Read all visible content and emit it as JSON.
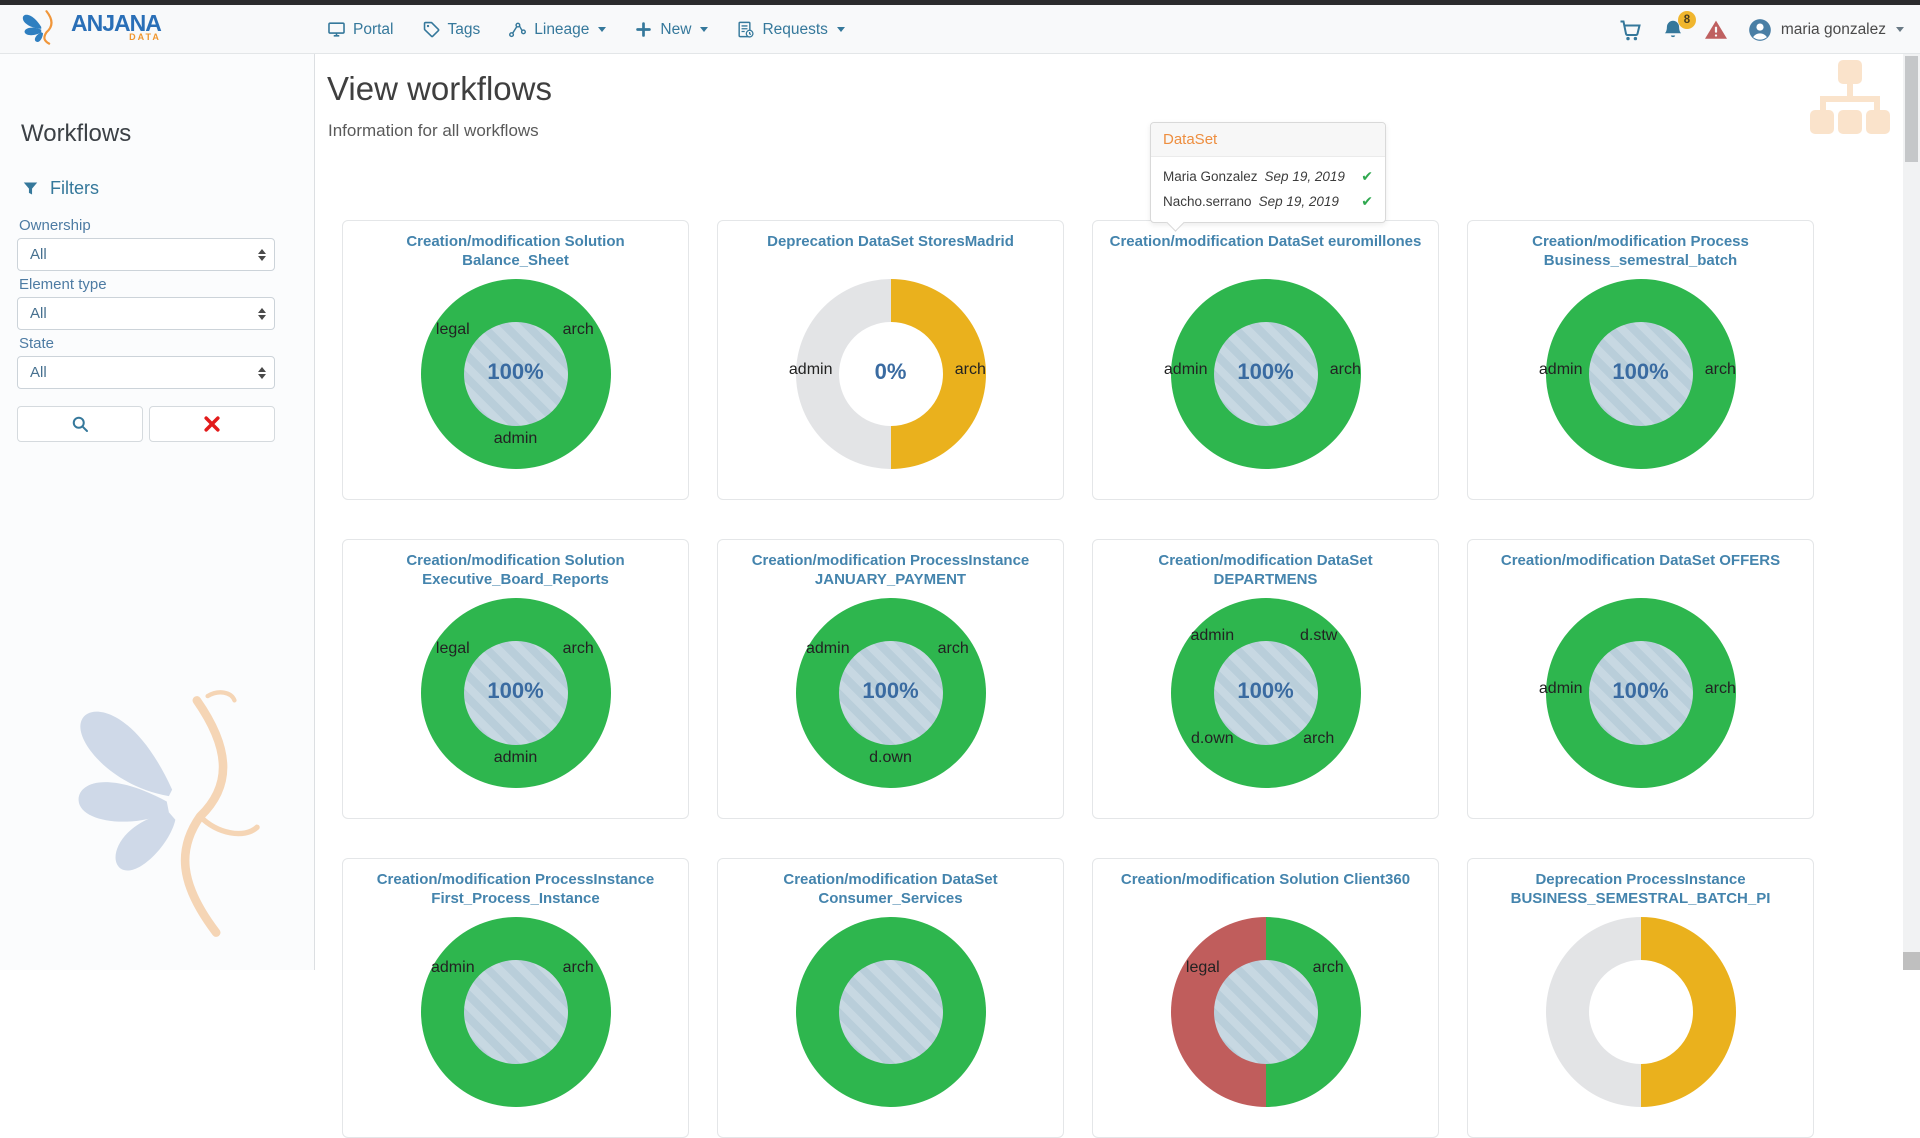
{
  "navbar": {
    "brand": {
      "name": "ANJANA",
      "sub": "DATA"
    },
    "items": [
      {
        "label": "Portal",
        "icon": "monitor-icon",
        "caret": false
      },
      {
        "label": "Tags",
        "icon": "tag-icon",
        "caret": false
      },
      {
        "label": "Lineage",
        "icon": "lineage-icon",
        "caret": true
      },
      {
        "label": "New",
        "icon": "plus-icon",
        "caret": true
      },
      {
        "label": "Requests",
        "icon": "requests-icon",
        "caret": true
      }
    ],
    "notifications_badge": "8",
    "user": "maria gonzalez"
  },
  "sidebar": {
    "title": "Workflows",
    "filters_label": "Filters",
    "fields": [
      {
        "label": "Ownership",
        "value": "All"
      },
      {
        "label": "Element type",
        "value": "All"
      },
      {
        "label": "State",
        "value": "All"
      }
    ]
  },
  "main": {
    "title": "View workflows",
    "subtitle": "Information for all workflows"
  },
  "popover": {
    "title": "DataSet",
    "rows": [
      {
        "name": "Maria Gonzalez",
        "date": "Sep 19, 2019",
        "approved": true
      },
      {
        "name": "Nacho.serrano",
        "date": "Sep 19, 2019",
        "approved": true
      }
    ]
  },
  "colors": {
    "accent_blue": "#35789b",
    "card_title_blue": "#4484ad",
    "donut_green": "#2eb64e",
    "donut_yellow": "#eab11d",
    "donut_gray": "#e3e4e6",
    "donut_red": "#c05d5c",
    "percent_blue": "#3a6ba1",
    "popover_orange": "#ee8e3f",
    "check_green": "#2fa84f",
    "badge_yellow": "#f0b62e",
    "warning_red": "#bf6060"
  },
  "workflows": [
    {
      "title": "Creation/modification Solution Balance_Sheet",
      "percent": "100%",
      "center": "striped",
      "segments": [
        {
          "color": "#2eb64e",
          "pct": 100
        }
      ],
      "labels": [
        {
          "text": "legal",
          "pos": "left"
        },
        {
          "text": "arch",
          "pos": "right"
        },
        {
          "text": "admin",
          "pos": "bottom"
        }
      ]
    },
    {
      "title": "Deprecation DataSet StoresMadrid",
      "percent": "0%",
      "center": "white",
      "segments": [
        {
          "color": "#eab11d",
          "pct": 50
        },
        {
          "color": "#e3e4e6",
          "pct": 50
        }
      ],
      "labels": [
        {
          "text": "admin",
          "pos": "mid-left"
        },
        {
          "text": "arch",
          "pos": "mid-right"
        }
      ]
    },
    {
      "title": "Creation/modification DataSet euromillones",
      "percent": "100%",
      "center": "striped",
      "segments": [
        {
          "color": "#2eb64e",
          "pct": 100
        }
      ],
      "labels": [
        {
          "text": "admin",
          "pos": "mid-left"
        },
        {
          "text": "arch",
          "pos": "mid-right"
        }
      ]
    },
    {
      "title": "Creation/modification Process Business_semestral_batch",
      "percent": "100%",
      "center": "striped",
      "segments": [
        {
          "color": "#2eb64e",
          "pct": 100
        }
      ],
      "labels": [
        {
          "text": "admin",
          "pos": "mid-left"
        },
        {
          "text": "arch",
          "pos": "mid-right"
        }
      ]
    },
    {
      "title": "Creation/modification Solution Executive_Board_Reports",
      "percent": "100%",
      "center": "striped",
      "segments": [
        {
          "color": "#2eb64e",
          "pct": 100
        }
      ],
      "labels": [
        {
          "text": "legal",
          "pos": "left"
        },
        {
          "text": "arch",
          "pos": "right"
        },
        {
          "text": "admin",
          "pos": "bottom"
        }
      ]
    },
    {
      "title": "Creation/modification ProcessInstance JANUARY_PAYMENT",
      "percent": "100%",
      "center": "striped",
      "segments": [
        {
          "color": "#2eb64e",
          "pct": 100
        }
      ],
      "labels": [
        {
          "text": "admin",
          "pos": "left"
        },
        {
          "text": "arch",
          "pos": "right"
        },
        {
          "text": "d.own",
          "pos": "bottom"
        }
      ]
    },
    {
      "title": "Creation/modification DataSet DEPARTMENS",
      "percent": "100%",
      "center": "striped",
      "segments": [
        {
          "color": "#2eb64e",
          "pct": 100
        }
      ],
      "labels": [
        {
          "text": "admin",
          "pos": "top-left"
        },
        {
          "text": "d.stw",
          "pos": "top-right"
        },
        {
          "text": "d.own",
          "pos": "bottom-left"
        },
        {
          "text": "arch",
          "pos": "bottom-right"
        }
      ]
    },
    {
      "title": "Creation/modification DataSet OFFERS",
      "percent": "100%",
      "center": "striped",
      "segments": [
        {
          "color": "#2eb64e",
          "pct": 100
        }
      ],
      "labels": [
        {
          "text": "admin",
          "pos": "mid-left"
        },
        {
          "text": "arch",
          "pos": "mid-right"
        }
      ]
    },
    {
      "title": "Creation/modification ProcessInstance First_Process_Instance",
      "percent": "",
      "center": "striped",
      "segments": [
        {
          "color": "#2eb64e",
          "pct": 100
        }
      ],
      "labels": [
        {
          "text": "admin",
          "pos": "left"
        },
        {
          "text": "arch",
          "pos": "right"
        }
      ]
    },
    {
      "title": "Creation/modification DataSet Consumer_Services",
      "percent": "",
      "center": "striped",
      "segments": [
        {
          "color": "#2eb64e",
          "pct": 100
        }
      ],
      "labels": []
    },
    {
      "title": "Creation/modification Solution Client360",
      "percent": "",
      "center": "striped",
      "segments": [
        {
          "color": "#2eb64e",
          "pct": 50
        },
        {
          "color": "#c05d5c",
          "pct": 50
        }
      ],
      "labels": [
        {
          "text": "legal",
          "pos": "left"
        },
        {
          "text": "arch",
          "pos": "right"
        }
      ]
    },
    {
      "title": "Deprecation ProcessInstance BUSINESS_SEMESTRAL_BATCH_PI",
      "percent": "",
      "center": "white",
      "segments": [
        {
          "color": "#eab11d",
          "pct": 50
        },
        {
          "color": "#e3e4e6",
          "pct": 50
        }
      ],
      "labels": []
    }
  ]
}
